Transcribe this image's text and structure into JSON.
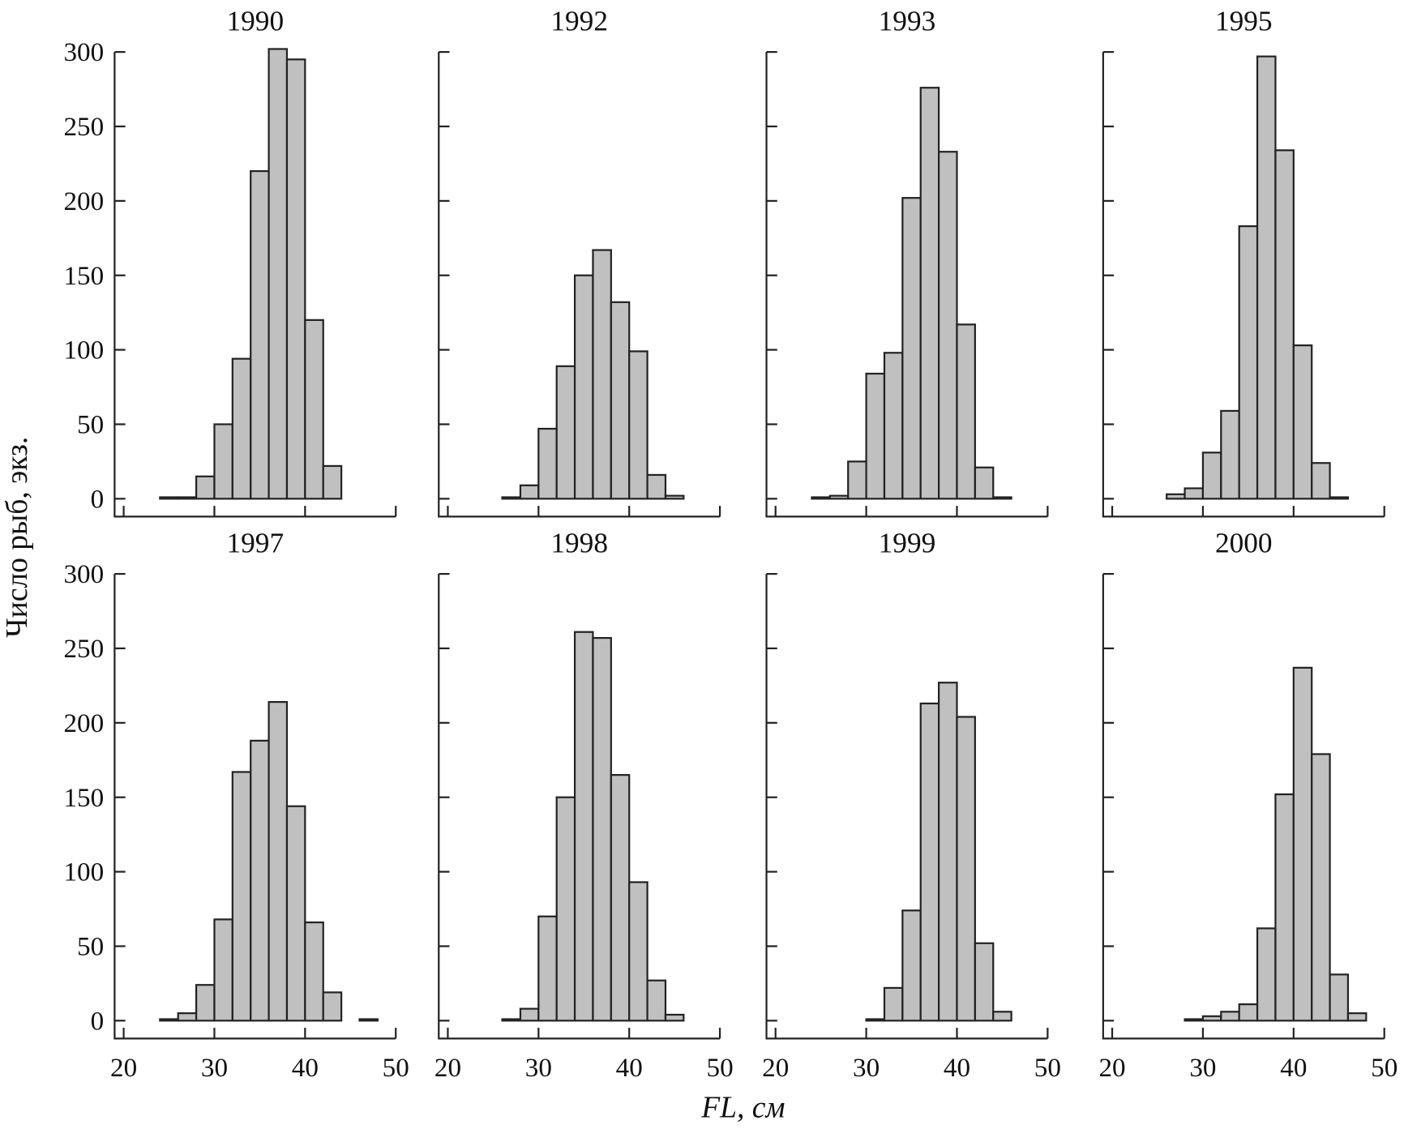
{
  "ylabel": "Число рыб, экз.",
  "xlabel": "FL, см",
  "chart_data": [
    {
      "type": "histogram",
      "title": "1990",
      "bins": [
        20,
        22,
        24,
        26,
        28,
        30,
        32,
        34,
        36,
        38,
        40,
        42,
        44,
        46,
        48,
        50
      ],
      "values": [
        0,
        0,
        1,
        1,
        15,
        50,
        94,
        220,
        302,
        295,
        120,
        22,
        0,
        0,
        0
      ],
      "color": "#c0c0c0",
      "xlim": [
        19,
        50
      ],
      "ylim": [
        -12,
        300
      ],
      "xticks": [
        20,
        30,
        40,
        50
      ],
      "yticks": [
        0,
        50,
        100,
        150,
        200,
        250,
        300
      ]
    },
    {
      "type": "histogram",
      "title": "1992",
      "bins": [
        20,
        22,
        24,
        26,
        28,
        30,
        32,
        34,
        36,
        38,
        40,
        42,
        44,
        46,
        48,
        50
      ],
      "values": [
        0,
        0,
        0,
        1,
        9,
        47,
        89,
        150,
        167,
        132,
        99,
        16,
        2,
        0,
        0
      ],
      "color": "#c0c0c0",
      "xlim": [
        19,
        50
      ],
      "ylim": [
        -12,
        300
      ],
      "xticks": [
        20,
        30,
        40,
        50
      ],
      "yticks": [
        0,
        50,
        100,
        150,
        200,
        250,
        300
      ]
    },
    {
      "type": "histogram",
      "title": "1993",
      "bins": [
        20,
        22,
        24,
        26,
        28,
        30,
        32,
        34,
        36,
        38,
        40,
        42,
        44,
        46,
        48,
        50
      ],
      "values": [
        0,
        0,
        1,
        2,
        25,
        84,
        98,
        202,
        276,
        233,
        117,
        21,
        1,
        0,
        0
      ],
      "color": "#c0c0c0",
      "xlim": [
        19,
        50
      ],
      "ylim": [
        -12,
        300
      ],
      "xticks": [
        20,
        30,
        40,
        50
      ],
      "yticks": [
        0,
        50,
        100,
        150,
        200,
        250,
        300
      ]
    },
    {
      "type": "histogram",
      "title": "1995",
      "bins": [
        20,
        22,
        24,
        26,
        28,
        30,
        32,
        34,
        36,
        38,
        40,
        42,
        44,
        46,
        48,
        50
      ],
      "values": [
        0,
        0,
        0,
        3,
        7,
        31,
        59,
        183,
        297,
        234,
        103,
        24,
        1,
        0,
        0
      ],
      "color": "#c0c0c0",
      "xlim": [
        19,
        50
      ],
      "ylim": [
        -12,
        300
      ],
      "xticks": [
        20,
        30,
        40,
        50
      ],
      "yticks": [
        0,
        50,
        100,
        150,
        200,
        250,
        300
      ]
    },
    {
      "type": "histogram",
      "title": "1997",
      "bins": [
        20,
        22,
        24,
        26,
        28,
        30,
        32,
        34,
        36,
        38,
        40,
        42,
        44,
        46,
        48,
        50
      ],
      "values": [
        0,
        0,
        1,
        5,
        24,
        68,
        167,
        188,
        214,
        144,
        66,
        19,
        0,
        1,
        0
      ],
      "color": "#c0c0c0",
      "xlim": [
        19,
        50
      ],
      "ylim": [
        -12,
        300
      ],
      "xticks": [
        20,
        30,
        40,
        50
      ],
      "yticks": [
        0,
        50,
        100,
        150,
        200,
        250,
        300
      ]
    },
    {
      "type": "histogram",
      "title": "1998",
      "bins": [
        20,
        22,
        24,
        26,
        28,
        30,
        32,
        34,
        36,
        38,
        40,
        42,
        44,
        46,
        48,
        50
      ],
      "values": [
        0,
        0,
        0,
        1,
        8,
        70,
        150,
        261,
        257,
        165,
        93,
        27,
        4,
        0,
        0
      ],
      "color": "#c0c0c0",
      "xlim": [
        19,
        50
      ],
      "ylim": [
        -12,
        300
      ],
      "xticks": [
        20,
        30,
        40,
        50
      ],
      "yticks": [
        0,
        50,
        100,
        150,
        200,
        250,
        300
      ]
    },
    {
      "type": "histogram",
      "title": "1999",
      "bins": [
        20,
        22,
        24,
        26,
        28,
        30,
        32,
        34,
        36,
        38,
        40,
        42,
        44,
        46,
        48,
        50
      ],
      "values": [
        0,
        0,
        0,
        0,
        0,
        1,
        22,
        74,
        213,
        227,
        204,
        52,
        6,
        0,
        0
      ],
      "color": "#c0c0c0",
      "xlim": [
        19,
        50
      ],
      "ylim": [
        -12,
        300
      ],
      "xticks": [
        20,
        30,
        40,
        50
      ],
      "yticks": [
        0,
        50,
        100,
        150,
        200,
        250,
        300
      ]
    },
    {
      "type": "histogram",
      "title": "2000",
      "bins": [
        20,
        22,
        24,
        26,
        28,
        30,
        32,
        34,
        36,
        38,
        40,
        42,
        44,
        46,
        48,
        50
      ],
      "values": [
        0,
        0,
        0,
        0,
        1,
        3,
        6,
        11,
        62,
        152,
        237,
        179,
        31,
        5,
        0
      ],
      "color": "#c0c0c0",
      "xlim": [
        19,
        50
      ],
      "ylim": [
        -12,
        300
      ],
      "xticks": [
        20,
        30,
        40,
        50
      ],
      "yticks": [
        0,
        50,
        100,
        150,
        200,
        250,
        300
      ]
    }
  ]
}
